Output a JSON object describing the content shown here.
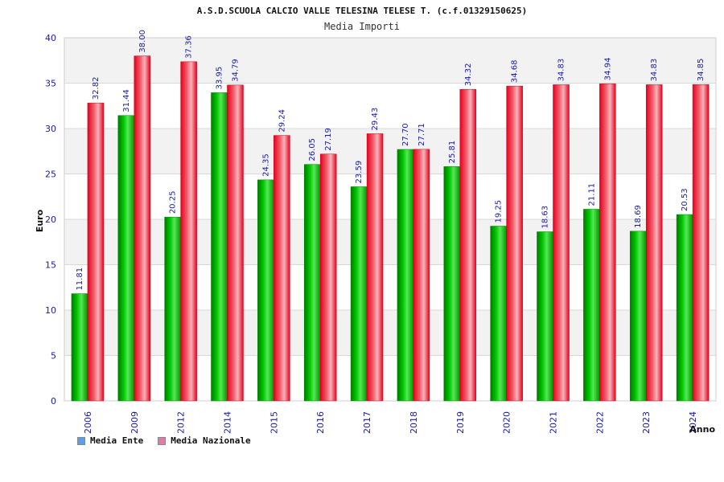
{
  "title": "A.S.D.SCUOLA CALCIO VALLE TELESINA TELESE T. (c.f.01329150625)",
  "subtitle": "Media Importi",
  "legend": [
    {
      "label": "Media Ente",
      "swatch": "#5c9ee8"
    },
    {
      "label": "Media Nazionale",
      "swatch": "#e07aa8"
    }
  ],
  "chart_data": {
    "type": "bar",
    "title": "A.S.D.SCUOLA CALCIO VALLE TELESINA TELESE T. (c.f.01329150625)",
    "subtitle": "Media Importi",
    "xlabel": "Anno",
    "ylabel": "Euro",
    "ylim": [
      0,
      40
    ],
    "yticks": [
      0,
      5,
      10,
      15,
      20,
      25,
      30,
      35,
      40
    ],
    "grid": true,
    "legend_position": "bottom-left",
    "categories": [
      "2006",
      "2009",
      "2012",
      "2014",
      "2015",
      "2016",
      "2017",
      "2018",
      "2019",
      "2020",
      "2021",
      "2022",
      "2023",
      "2024"
    ],
    "series": [
      {
        "name": "Media Ente",
        "color": "#00b400",
        "values": [
          11.81,
          31.44,
          20.25,
          33.95,
          24.35,
          26.05,
          23.59,
          27.7,
          25.81,
          19.25,
          18.63,
          21.11,
          18.69,
          20.53
        ],
        "labels": [
          "11.81",
          "31.44",
          "20.25",
          "33.95",
          "24.35",
          "26.05",
          "23.59",
          "27.70",
          "25.81",
          "19.25",
          "18.63",
          "21.11",
          "18.69",
          "20.53"
        ]
      },
      {
        "name": "Media Nazionale",
        "color": "#e8102a",
        "values": [
          32.82,
          38.0,
          37.36,
          34.79,
          29.24,
          27.19,
          29.43,
          27.71,
          34.32,
          34.68,
          34.83,
          34.94,
          34.83,
          34.85
        ],
        "labels": [
          "32.82",
          "38.00",
          "37.36",
          "34.79",
          "29.24",
          "27.19",
          "29.43",
          "27.71",
          "34.32",
          "34.68",
          "34.83",
          "34.94",
          "34.83",
          "34.85"
        ]
      }
    ]
  }
}
